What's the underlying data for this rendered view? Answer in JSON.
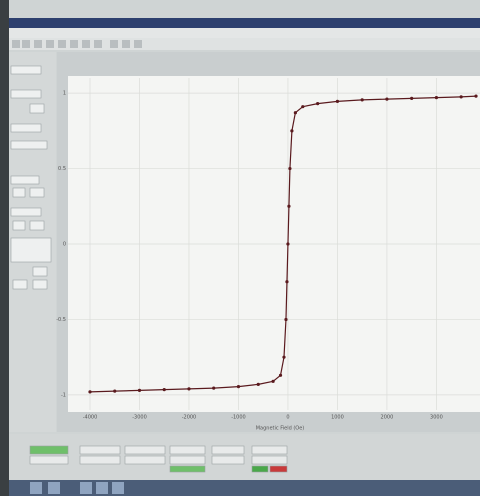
{
  "chart_data": {
    "type": "line",
    "x_label": "Magnetic Field (Oe)",
    "x": [
      -4000,
      -3500,
      -3000,
      -2500,
      -2000,
      -1500,
      -1000,
      -600,
      -300,
      -150,
      -80,
      -40,
      -20,
      0,
      20,
      40,
      80,
      150,
      300,
      600,
      1000,
      1500,
      2000,
      2500,
      3000,
      3500,
      3800
    ],
    "series": [
      {
        "color": "#5a1a1e",
        "values": [
          -0.98,
          -0.975,
          -0.97,
          -0.965,
          -0.96,
          -0.955,
          -0.945,
          -0.93,
          -0.91,
          -0.87,
          -0.75,
          -0.5,
          -0.25,
          0,
          0.25,
          0.5,
          0.75,
          0.87,
          0.91,
          0.93,
          0.945,
          0.955,
          0.96,
          0.965,
          0.97,
          0.975,
          0.98
        ]
      }
    ],
    "xlim": [
      -4000,
      3800
    ],
    "xticks": [
      -4000,
      -3000,
      -2000,
      -1000,
      0,
      1000,
      2000,
      3000
    ],
    "ylim": [
      -1.1,
      1.1
    ],
    "yticks": [
      -1,
      -0.5,
      0,
      0.5,
      1
    ],
    "grid": true
  }
}
